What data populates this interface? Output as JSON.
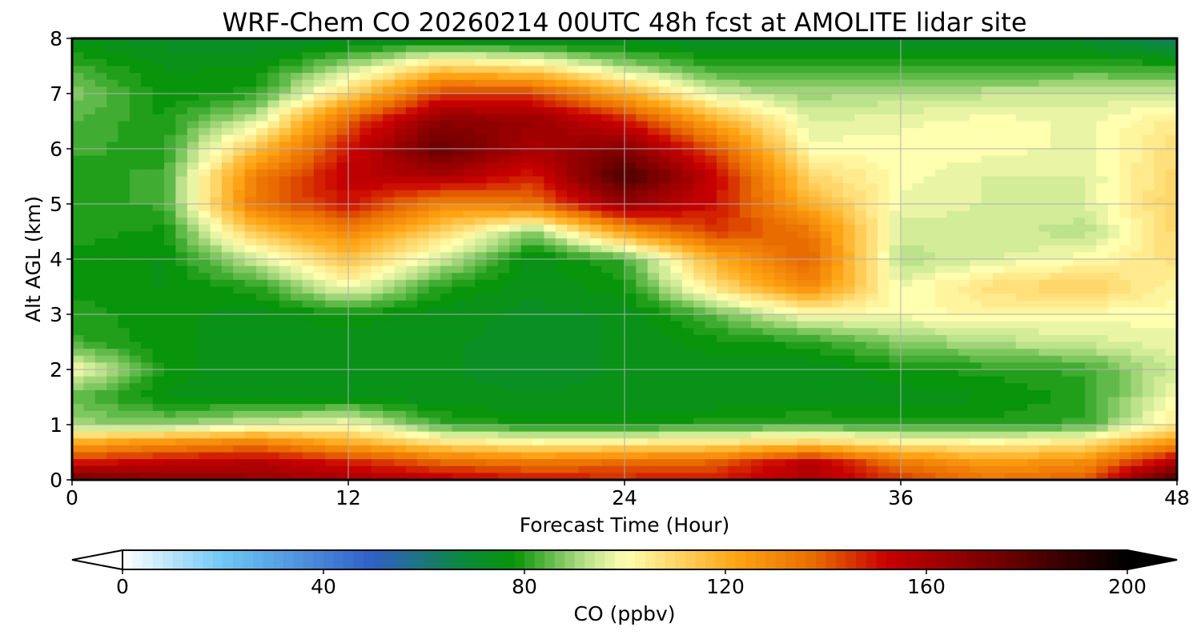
{
  "chart_data": {
    "type": "heatmap",
    "subtype": "filled-contour time-height cross section",
    "title": "WRF-Chem CO  20260214 00UTC 48h fcst at AMOLITE lidar site",
    "xlabel": "Forecast Time (Hour)",
    "ylabel": "Alt AGL (km)",
    "xlim": [
      0,
      48
    ],
    "ylim": [
      0,
      8
    ],
    "xticks": [
      0,
      12,
      24,
      36,
      48
    ],
    "yticks": [
      0,
      1,
      2,
      3,
      4,
      5,
      6,
      7,
      8
    ],
    "grid": true,
    "x": [
      0,
      4,
      8,
      12,
      16,
      20,
      24,
      28,
      32,
      36,
      40,
      44,
      48
    ],
    "y": [
      0,
      0.3,
      0.7,
      1,
      1.5,
      2,
      2.5,
      3,
      3.5,
      4,
      4.5,
      5,
      5.5,
      6,
      6.5,
      7,
      7.5,
      8
    ],
    "z": [
      [
        175,
        168,
        165,
        160,
        155,
        150,
        148,
        150,
        158,
        145,
        135,
        140,
        185
      ],
      [
        150,
        155,
        158,
        150,
        140,
        135,
        138,
        140,
        158,
        135,
        125,
        130,
        160
      ],
      [
        118,
        125,
        130,
        118,
        105,
        100,
        102,
        104,
        108,
        102,
        100,
        105,
        125
      ],
      [
        90,
        88,
        95,
        100,
        82,
        78,
        78,
        80,
        82,
        80,
        80,
        82,
        105
      ],
      [
        85,
        76,
        74,
        75,
        74,
        74,
        74,
        74,
        74,
        75,
        76,
        80,
        100
      ],
      [
        100,
        78,
        74,
        74,
        74,
        73,
        74,
        74,
        74,
        78,
        80,
        82,
        95
      ],
      [
        82,
        77,
        75,
        75,
        74,
        73,
        74,
        78,
        80,
        88,
        92,
        95,
        98
      ],
      [
        80,
        77,
        75,
        78,
        75,
        73,
        74,
        85,
        100,
        100,
        102,
        100,
        100
      ],
      [
        78,
        76,
        80,
        100,
        80,
        74,
        78,
        108,
        130,
        98,
        108,
        112,
        102
      ],
      [
        78,
        76,
        95,
        115,
        95,
        75,
        82,
        120,
        140,
        92,
        96,
        100,
        108
      ],
      [
        80,
        78,
        115,
        130,
        110,
        88,
        125,
        145,
        135,
        95,
        95,
        92,
        110
      ],
      [
        80,
        82,
        135,
        150,
        130,
        135,
        165,
        150,
        120,
        98,
        96,
        96,
        112
      ],
      [
        80,
        82,
        132,
        155,
        160,
        148,
        185,
        152,
        110,
        100,
        96,
        96,
        110
      ],
      [
        82,
        80,
        115,
        150,
        178,
        160,
        170,
        140,
        100,
        100,
        100,
        98,
        108
      ],
      [
        84,
        79,
        95,
        140,
        168,
        165,
        150,
        120,
        96,
        98,
        100,
        98,
        105
      ],
      [
        88,
        77,
        80,
        110,
        145,
        145,
        120,
        95,
        90,
        92,
        93,
        94,
        95
      ],
      [
        82,
        76,
        76,
        90,
        110,
        105,
        90,
        80,
        80,
        80,
        80,
        82,
        80
      ],
      [
        75,
        72,
        72,
        72,
        72,
        70,
        72,
        72,
        72,
        72,
        72,
        70,
        62
      ]
    ],
    "colorbar": {
      "label": "CO  (ppbv)",
      "range": [
        0,
        200
      ],
      "ticks": [
        0,
        40,
        80,
        120,
        160,
        200
      ],
      "extend": "both",
      "colormap_stops": [
        {
          "value": 0,
          "color": "#ffffff"
        },
        {
          "value": 20,
          "color": "#6ec7f5"
        },
        {
          "value": 50,
          "color": "#2f5fc6"
        },
        {
          "value": 68,
          "color": "#0b8a3c"
        },
        {
          "value": 78,
          "color": "#089408"
        },
        {
          "value": 92,
          "color": "#b8e08a"
        },
        {
          "value": 100,
          "color": "#ffffb0"
        },
        {
          "value": 122,
          "color": "#ffa514"
        },
        {
          "value": 138,
          "color": "#e86a00"
        },
        {
          "value": 152,
          "color": "#c80000"
        },
        {
          "value": 175,
          "color": "#700000"
        },
        {
          "value": 200,
          "color": "#000000"
        }
      ]
    }
  }
}
